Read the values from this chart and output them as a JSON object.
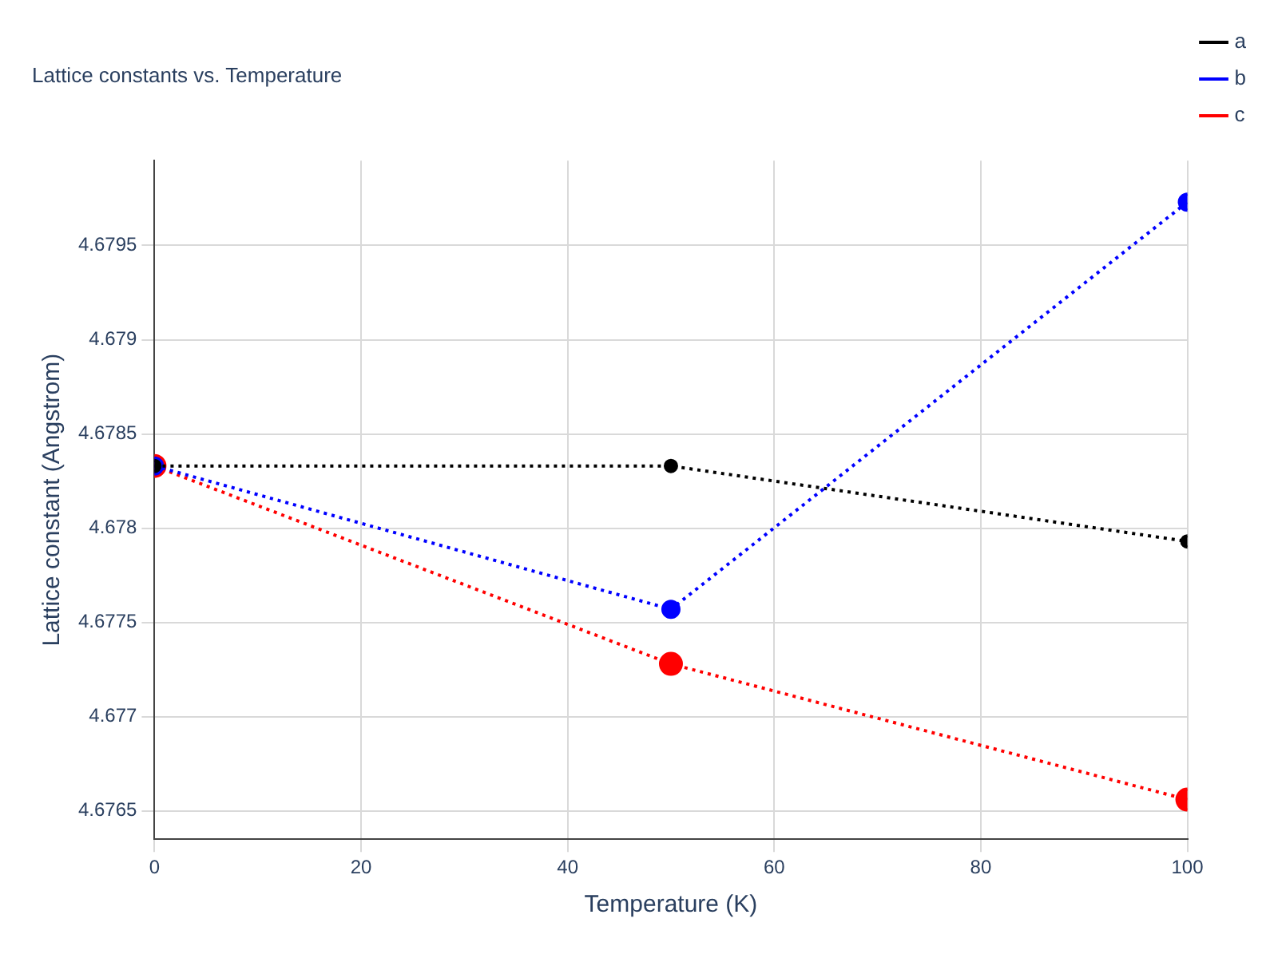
{
  "chart_data": {
    "type": "line",
    "title": "Lattice constants vs. Temperature",
    "xlabel": "Temperature (K)",
    "ylabel": "Lattice constant (Angstrom)",
    "x": [
      0,
      50,
      100
    ],
    "series": [
      {
        "name": "a",
        "color": "#000000",
        "values": [
          4.67833,
          4.67833,
          4.67793
        ]
      },
      {
        "name": "b",
        "color": "#0000ff",
        "values": [
          4.67833,
          4.67757,
          4.67973
        ]
      },
      {
        "name": "c",
        "color": "#ff0000",
        "values": [
          4.67833,
          4.67728,
          4.67656
        ]
      }
    ],
    "xlim": [
      0,
      100
    ],
    "xticks": [
      0,
      20,
      40,
      60,
      80,
      100
    ],
    "ylim": [
      4.67635,
      4.67995
    ],
    "yticks": [
      4.6765,
      4.677,
      4.6775,
      4.678,
      4.6785,
      4.679,
      4.6795
    ],
    "grid": true,
    "legend": "top right",
    "marker": "circle",
    "line_style": "dotted"
  }
}
